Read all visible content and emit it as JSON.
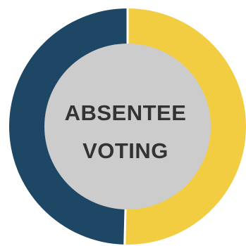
{
  "chart_data": {
    "type": "pie",
    "variant": "donut",
    "title": "",
    "center_text": [
      "ABSENTEE",
      "VOTING"
    ],
    "slices": [
      {
        "value": 50.4,
        "color": "#F2CD42"
      },
      {
        "value": 49.6,
        "color": "#1E4766"
      }
    ],
    "hole_color": "#CCCCCC",
    "separator_color": "#FFFFFF"
  }
}
